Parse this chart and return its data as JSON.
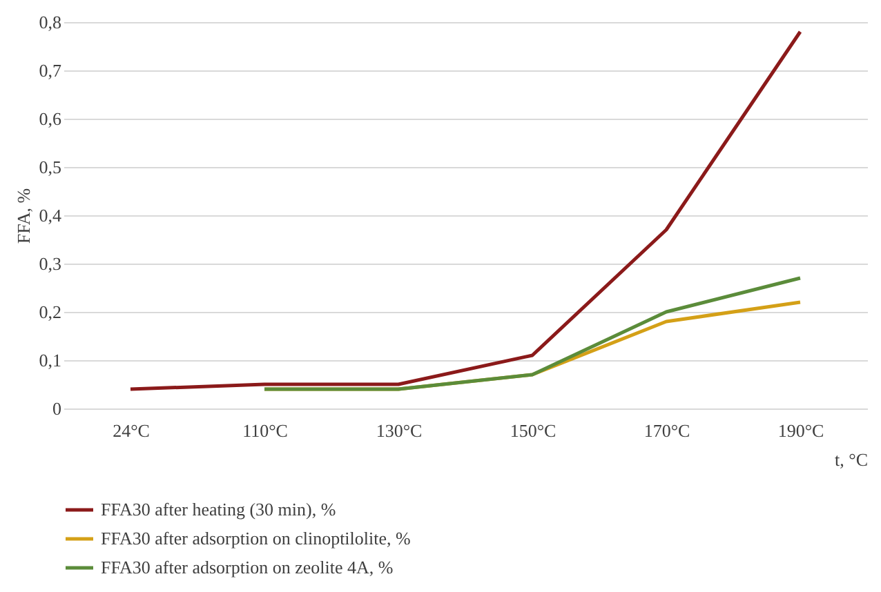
{
  "chart_data": {
    "type": "line",
    "ylabel": "FFA, %",
    "xlabel": "t, °C",
    "categories": [
      "24°C",
      "110°C",
      "130°C",
      "150°C",
      "170°C",
      "190°C"
    ],
    "series": [
      {
        "name": "FFA30 after heating (30 min), %",
        "color": "#8b1a1a",
        "values": [
          0.04,
          0.05,
          0.05,
          0.11,
          0.37,
          0.78
        ]
      },
      {
        "name": "FFA30 after adsorption on clinoptilolite, %",
        "color": "#d4a017",
        "values": [
          null,
          0.04,
          0.04,
          0.07,
          0.18,
          0.22
        ]
      },
      {
        "name": "FFA30 after adsorption on zeolite 4A, %",
        "color": "#5b8c3a",
        "values": [
          null,
          0.04,
          0.04,
          0.07,
          0.2,
          0.27
        ]
      }
    ],
    "ylim": [
      0,
      0.8
    ],
    "yticks": [
      0,
      {
        "value": 0.1,
        "label": "0,1"
      },
      {
        "value": 0.2,
        "label": "0,2"
      },
      {
        "value": 0.3,
        "label": "0,3"
      },
      {
        "value": 0.4,
        "label": "0,4"
      },
      {
        "value": 0.5,
        "label": "0,5"
      },
      {
        "value": 0.6,
        "label": "0,6"
      },
      {
        "value": 0.7,
        "label": "0,7"
      },
      {
        "value": 0.8,
        "label": "0,8"
      }
    ],
    "grid": "y",
    "legend": "bottom",
    "marker": "none",
    "line_style": "solid"
  }
}
